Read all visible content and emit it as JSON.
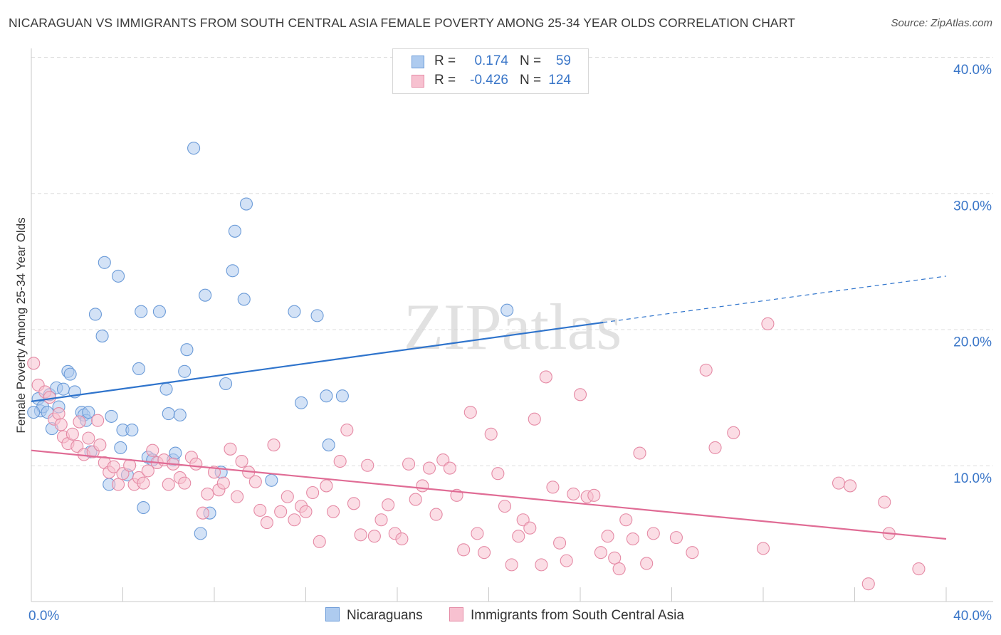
{
  "title": "NICARAGUAN VS IMMIGRANTS FROM SOUTH CENTRAL ASIA FEMALE POVERTY AMONG 25-34 YEAR OLDS CORRELATION CHART",
  "source": "Source: ZipAtlas.com",
  "watermark": "ZIPatlas",
  "stats": [
    {
      "r_label": "R =",
      "r_value": "0.174",
      "n_label": "N =",
      "n_value": "59",
      "fill": "#aecbef",
      "stroke": "#6b9bd8"
    },
    {
      "r_label": "R =",
      "r_value": "-0.426",
      "n_label": "N =",
      "n_value": "124",
      "fill": "#f7c1d0",
      "stroke": "#e58aa5"
    }
  ],
  "legend": [
    {
      "label": "Nicaraguans",
      "fill": "#aecbef",
      "stroke": "#6b9bd8"
    },
    {
      "label": "Immigrants from South Central Asia",
      "fill": "#f7c1d0",
      "stroke": "#e58aa5"
    }
  ],
  "chart_data": {
    "type": "scatter",
    "title": "NICARAGUAN VS IMMIGRANTS FROM SOUTH CENTRAL ASIA FEMALE POVERTY AMONG 25-34 YEAR OLDS CORRELATION CHART",
    "xlabel": "",
    "ylabel": "Female Poverty Among 25-34 Year Olds",
    "xlim": [
      0,
      40
    ],
    "ylim": [
      0,
      40
    ],
    "x_tick_labels": [
      "0.0%",
      "40.0%"
    ],
    "y_ticks": [
      10,
      20,
      30,
      40
    ],
    "y_tick_labels": [
      "10.0%",
      "20.0%",
      "30.0%",
      "40.0%"
    ],
    "grid": "horizontal dashed",
    "legend_position": "bottom-center",
    "series": [
      {
        "name": "Nicaraguans",
        "color": "#6b9bd8",
        "fill": "#aecbef",
        "line_color": "#2f74cc",
        "trend": {
          "x0": 0,
          "y0": 14.7,
          "x1": 25,
          "y1": 20.5,
          "x_dash_end": 40,
          "y_dash_end": 23.9
        },
        "points": [
          [
            0.3,
            14.9
          ],
          [
            0.4,
            14.0
          ],
          [
            0.5,
            14.3
          ],
          [
            0.7,
            13.9
          ],
          [
            0.8,
            15.2
          ],
          [
            0.9,
            12.7
          ],
          [
            1.1,
            15.7
          ],
          [
            1.2,
            14.3
          ],
          [
            1.4,
            15.6
          ],
          [
            1.6,
            16.9
          ],
          [
            1.7,
            16.7
          ],
          [
            1.9,
            15.4
          ],
          [
            2.2,
            13.9
          ],
          [
            2.3,
            13.7
          ],
          [
            2.4,
            13.3
          ],
          [
            2.5,
            13.9
          ],
          [
            2.6,
            11.0
          ],
          [
            2.8,
            21.1
          ],
          [
            3.1,
            19.5
          ],
          [
            3.2,
            24.9
          ],
          [
            3.4,
            8.6
          ],
          [
            3.5,
            13.6
          ],
          [
            3.8,
            23.9
          ],
          [
            3.9,
            11.3
          ],
          [
            4.0,
            12.6
          ],
          [
            4.2,
            9.3
          ],
          [
            4.4,
            12.6
          ],
          [
            4.7,
            17.1
          ],
          [
            4.8,
            21.3
          ],
          [
            4.9,
            6.9
          ],
          [
            5.1,
            10.6
          ],
          [
            5.3,
            10.4
          ],
          [
            5.6,
            21.3
          ],
          [
            5.9,
            15.6
          ],
          [
            6.0,
            13.8
          ],
          [
            6.2,
            10.4
          ],
          [
            6.3,
            10.9
          ],
          [
            6.5,
            13.7
          ],
          [
            6.7,
            16.9
          ],
          [
            6.8,
            18.5
          ],
          [
            7.1,
            33.3
          ],
          [
            7.4,
            5.0
          ],
          [
            7.6,
            22.5
          ],
          [
            7.8,
            6.5
          ],
          [
            8.3,
            9.5
          ],
          [
            8.5,
            16.0
          ],
          [
            8.8,
            24.3
          ],
          [
            8.9,
            27.2
          ],
          [
            9.3,
            22.2
          ],
          [
            9.4,
            29.2
          ],
          [
            10.5,
            8.9
          ],
          [
            11.5,
            21.3
          ],
          [
            11.8,
            14.6
          ],
          [
            12.5,
            21.0
          ],
          [
            12.9,
            15.1
          ],
          [
            13.0,
            11.5
          ],
          [
            13.6,
            15.1
          ],
          [
            20.8,
            21.4
          ],
          [
            0.1,
            13.9
          ]
        ]
      },
      {
        "name": "Immigrants from South Central Asia",
        "color": "#e58aa5",
        "fill": "#f7c1d0",
        "line_color": "#e06c95",
        "trend": {
          "x0": 0,
          "y0": 11.1,
          "x1": 40,
          "y1": 4.6
        },
        "points": [
          [
            0.1,
            17.5
          ],
          [
            0.3,
            15.9
          ],
          [
            0.6,
            15.4
          ],
          [
            0.8,
            15.0
          ],
          [
            1.0,
            13.4
          ],
          [
            1.2,
            13.8
          ],
          [
            1.4,
            12.1
          ],
          [
            1.6,
            11.6
          ],
          [
            1.8,
            12.3
          ],
          [
            2.0,
            11.4
          ],
          [
            2.1,
            13.2
          ],
          [
            2.3,
            10.8
          ],
          [
            2.5,
            12.0
          ],
          [
            2.7,
            11.0
          ],
          [
            2.9,
            13.3
          ],
          [
            3.0,
            11.5
          ],
          [
            3.2,
            10.2
          ],
          [
            3.4,
            9.5
          ],
          [
            3.6,
            9.9
          ],
          [
            3.8,
            8.6
          ],
          [
            4.0,
            9.4
          ],
          [
            4.3,
            10.0
          ],
          [
            4.5,
            8.6
          ],
          [
            4.7,
            9.1
          ],
          [
            4.9,
            8.7
          ],
          [
            5.1,
            9.6
          ],
          [
            5.3,
            11.1
          ],
          [
            5.5,
            10.2
          ],
          [
            5.8,
            10.4
          ],
          [
            6.0,
            8.6
          ],
          [
            6.2,
            10.1
          ],
          [
            6.5,
            9.1
          ],
          [
            6.7,
            8.7
          ],
          [
            7.0,
            10.6
          ],
          [
            7.2,
            10.1
          ],
          [
            7.5,
            6.5
          ],
          [
            7.7,
            7.9
          ],
          [
            8.0,
            9.5
          ],
          [
            8.2,
            8.2
          ],
          [
            8.4,
            8.7
          ],
          [
            8.7,
            11.2
          ],
          [
            9.0,
            7.7
          ],
          [
            9.2,
            10.3
          ],
          [
            9.5,
            9.5
          ],
          [
            9.8,
            8.8
          ],
          [
            10.0,
            6.7
          ],
          [
            10.3,
            5.8
          ],
          [
            10.6,
            11.5
          ],
          [
            10.9,
            6.6
          ],
          [
            11.2,
            7.7
          ],
          [
            11.5,
            6.0
          ],
          [
            11.8,
            7.0
          ],
          [
            12.0,
            6.6
          ],
          [
            12.3,
            8.0
          ],
          [
            12.6,
            4.4
          ],
          [
            12.9,
            8.5
          ],
          [
            13.2,
            6.6
          ],
          [
            13.5,
            10.3
          ],
          [
            13.8,
            12.6
          ],
          [
            14.1,
            7.2
          ],
          [
            14.4,
            4.9
          ],
          [
            14.7,
            10.0
          ],
          [
            15.0,
            4.8
          ],
          [
            15.3,
            6.0
          ],
          [
            15.6,
            7.1
          ],
          [
            15.9,
            5.0
          ],
          [
            16.2,
            4.6
          ],
          [
            16.5,
            10.1
          ],
          [
            16.8,
            7.5
          ],
          [
            17.1,
            8.5
          ],
          [
            17.4,
            9.8
          ],
          [
            17.7,
            6.4
          ],
          [
            18.0,
            10.4
          ],
          [
            18.3,
            9.8
          ],
          [
            18.6,
            7.8
          ],
          [
            18.9,
            3.8
          ],
          [
            19.2,
            13.9
          ],
          [
            19.5,
            5.0
          ],
          [
            19.8,
            3.6
          ],
          [
            20.1,
            12.3
          ],
          [
            20.4,
            9.4
          ],
          [
            20.7,
            7.0
          ],
          [
            21.0,
            2.7
          ],
          [
            21.3,
            4.8
          ],
          [
            21.5,
            6.0
          ],
          [
            21.8,
            5.4
          ],
          [
            22.0,
            13.4
          ],
          [
            22.3,
            2.7
          ],
          [
            22.5,
            16.5
          ],
          [
            22.8,
            8.4
          ],
          [
            23.1,
            4.3
          ],
          [
            23.4,
            3.0
          ],
          [
            23.7,
            7.9
          ],
          [
            24.0,
            15.2
          ],
          [
            24.3,
            7.7
          ],
          [
            24.6,
            7.8
          ],
          [
            24.9,
            3.6
          ],
          [
            25.2,
            4.8
          ],
          [
            25.5,
            3.2
          ],
          [
            25.7,
            2.4
          ],
          [
            26.0,
            6.0
          ],
          [
            26.3,
            4.6
          ],
          [
            26.6,
            10.9
          ],
          [
            26.9,
            2.8
          ],
          [
            27.2,
            5.0
          ],
          [
            28.2,
            4.7
          ],
          [
            28.9,
            3.6
          ],
          [
            29.5,
            17.0
          ],
          [
            29.9,
            11.3
          ],
          [
            30.7,
            12.4
          ],
          [
            32.0,
            3.9
          ],
          [
            32.2,
            20.4
          ],
          [
            35.3,
            8.7
          ],
          [
            35.8,
            8.5
          ],
          [
            36.6,
            1.3
          ],
          [
            37.3,
            7.3
          ],
          [
            37.5,
            5.0
          ],
          [
            38.8,
            2.4
          ],
          [
            1.3,
            13.0
          ]
        ]
      }
    ]
  }
}
